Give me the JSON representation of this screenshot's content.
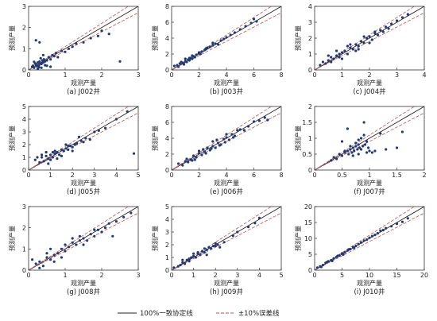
{
  "legend": {
    "one_to_one": "100%一致协定线",
    "error_band": "±10%误差线"
  },
  "colors": {
    "points": "#1f3b73",
    "one_to_one_line": "#222222",
    "error_lines": "#c0504d"
  },
  "chart_data": [
    {
      "type": "scatter",
      "caption": "(a) J002井",
      "xlabel": "观测产量",
      "ylabel": "预测产量",
      "xlim": [
        0,
        3
      ],
      "ylim": [
        0,
        3
      ],
      "xticks": [
        0,
        1,
        2,
        3
      ],
      "yticks": [
        0,
        1,
        2,
        3
      ],
      "x": [
        0.1,
        0.12,
        0.15,
        0.18,
        0.2,
        0.22,
        0.25,
        0.28,
        0.3,
        0.32,
        0.35,
        0.38,
        0.4,
        0.42,
        0.45,
        0.5,
        0.55,
        0.6,
        0.65,
        0.7,
        0.75,
        0.8,
        0.9,
        1.0,
        1.1,
        1.2,
        1.3,
        1.5,
        1.7,
        1.9,
        2.0,
        2.2,
        2.5,
        0.2,
        0.3,
        0.4,
        0.5,
        0.6,
        0.25,
        0.35,
        0.45,
        0.15,
        0.28,
        0.33
      ],
      "y": [
        0.15,
        0.2,
        0.1,
        0.3,
        0.25,
        0.18,
        0.35,
        0.2,
        0.4,
        0.3,
        0.28,
        0.45,
        0.35,
        0.5,
        0.4,
        0.45,
        0.6,
        0.5,
        0.7,
        0.65,
        0.8,
        0.6,
        0.9,
        0.85,
        1.0,
        1.1,
        1.25,
        1.3,
        1.5,
        1.6,
        1.85,
        1.7,
        0.4,
        1.4,
        1.3,
        0.7,
        0.2,
        0.15,
        0.05,
        0.1,
        0.22,
        0.38,
        0.12,
        0.55
      ]
    },
    {
      "type": "scatter",
      "caption": "(b) J003井",
      "xlabel": "观测产量",
      "ylabel": "预测产量",
      "xlim": [
        0,
        8
      ],
      "ylim": [
        0,
        8
      ],
      "xticks": [
        0,
        2,
        4,
        6,
        8
      ],
      "yticks": [
        0,
        2,
        4,
        6,
        8
      ],
      "x": [
        0.2,
        0.4,
        0.5,
        0.6,
        0.8,
        0.9,
        1.0,
        1.1,
        1.2,
        1.3,
        1.4,
        1.5,
        1.6,
        1.7,
        1.8,
        2.0,
        2.1,
        2.2,
        2.4,
        2.5,
        2.6,
        2.8,
        3.0,
        3.2,
        3.4,
        3.6,
        3.8,
        4.0,
        4.3,
        4.6,
        5.0,
        5.4,
        5.8,
        6.0,
        6.2,
        1.0,
        1.5,
        2.0,
        2.5,
        3.0,
        0.7,
        1.3
      ],
      "y": [
        0.5,
        0.6,
        0.4,
        0.8,
        0.9,
        0.7,
        1.1,
        1.0,
        1.3,
        1.2,
        1.5,
        1.4,
        1.7,
        1.6,
        1.9,
        2.1,
        2.0,
        2.3,
        2.5,
        2.6,
        2.8,
        2.9,
        3.1,
        3.3,
        3.2,
        3.7,
        3.9,
        4.1,
        4.4,
        4.7,
        5.1,
        5.5,
        5.9,
        6.4,
        6.1,
        1.4,
        1.8,
        2.2,
        2.7,
        3.4,
        1.0,
        1.5
      ]
    },
    {
      "type": "scatter",
      "caption": "(c) J004井",
      "xlabel": "观测产量",
      "ylabel": "预测产量",
      "xlim": [
        0,
        4
      ],
      "ylim": [
        0,
        4
      ],
      "xticks": [
        0,
        1,
        2,
        3,
        4
      ],
      "yticks": [
        0,
        1,
        2,
        3,
        4
      ],
      "x": [
        0.2,
        0.3,
        0.4,
        0.5,
        0.6,
        0.7,
        0.8,
        0.9,
        1.0,
        1.1,
        1.2,
        1.3,
        1.4,
        1.5,
        1.6,
        1.7,
        1.8,
        1.9,
        2.0,
        2.1,
        2.2,
        2.3,
        2.4,
        2.5,
        2.6,
        2.8,
        3.0,
        3.2,
        3.4,
        0.5,
        0.8,
        1.0,
        1.2,
        1.5,
        1.8,
        2.0,
        0.6,
        0.9,
        1.3,
        1.6,
        2.2,
        2.7
      ],
      "y": [
        0.3,
        0.5,
        0.4,
        0.6,
        0.8,
        0.7,
        0.9,
        1.0,
        1.1,
        1.2,
        1.0,
        1.4,
        1.3,
        1.6,
        1.5,
        1.8,
        1.7,
        2.0,
        2.1,
        1.9,
        2.3,
        2.2,
        2.5,
        2.4,
        2.7,
        2.9,
        3.1,
        3.3,
        3.5,
        0.9,
        1.2,
        0.7,
        1.5,
        1.2,
        2.1,
        1.7,
        0.5,
        0.8,
        1.6,
        1.3,
        2.4,
        2.6
      ]
    },
    {
      "type": "scatter",
      "caption": "(d) J005井",
      "xlabel": "观测产量",
      "ylabel": "预测产量",
      "xlim": [
        0,
        5
      ],
      "ylim": [
        0,
        5
      ],
      "xticks": [
        0,
        1,
        2,
        3,
        4,
        5
      ],
      "yticks": [
        0,
        1,
        2,
        3,
        4,
        5
      ],
      "x": [
        0.3,
        0.5,
        0.6,
        0.7,
        0.8,
        0.9,
        1.0,
        1.1,
        1.2,
        1.3,
        1.4,
        1.5,
        1.6,
        1.7,
        1.8,
        1.9,
        2.0,
        2.1,
        2.2,
        2.4,
        2.6,
        2.8,
        3.0,
        3.2,
        3.5,
        4.0,
        4.5,
        4.8,
        0.8,
        1.0,
        1.2,
        1.5,
        1.8,
        2.0,
        2.5,
        0.6,
        0.9,
        1.3,
        1.7,
        2.3,
        0.4,
        1.1
      ],
      "y": [
        0.8,
        0.6,
        1.0,
        0.7,
        1.1,
        0.9,
        1.2,
        1.0,
        1.3,
        1.4,
        1.2,
        1.6,
        1.5,
        1.7,
        1.6,
        1.9,
        1.8,
        2.0,
        2.1,
        2.3,
        2.5,
        2.4,
        3.0,
        3.1,
        3.3,
        4.0,
        4.6,
        1.3,
        1.4,
        0.8,
        1.5,
        1.1,
        1.9,
        1.5,
        2.2,
        1.2,
        0.5,
        0.9,
        2.0,
        2.6,
        1.0,
        1.4
      ]
    },
    {
      "type": "scatter",
      "caption": "(e) J006井",
      "xlabel": "观测产量",
      "ylabel": "预测产量",
      "xlim": [
        0,
        8
      ],
      "ylim": [
        0,
        8
      ],
      "xticks": [
        0,
        2,
        4,
        6,
        8
      ],
      "yticks": [
        0,
        2,
        4,
        6,
        8
      ],
      "x": [
        0.5,
        0.8,
        1.0,
        1.2,
        1.4,
        1.6,
        1.8,
        2.0,
        2.2,
        2.4,
        2.6,
        2.8,
        3.0,
        3.2,
        3.4,
        3.6,
        3.8,
        4.0,
        4.2,
        4.4,
        4.6,
        4.8,
        5.0,
        5.3,
        5.6,
        6.0,
        6.4,
        6.8,
        7.0,
        1.5,
        2.0,
        2.5,
        3.0,
        3.5,
        4.0,
        4.5,
        1.1,
        1.7,
        2.3,
        2.9,
        3.3,
        3.9
      ],
      "y": [
        0.8,
        0.6,
        1.1,
        1.0,
        1.3,
        1.8,
        1.6,
        2.1,
        1.9,
        2.3,
        2.8,
        2.5,
        3.0,
        2.8,
        3.4,
        3.2,
        3.9,
        4.1,
        3.8,
        4.5,
        4.3,
        5.0,
        5.1,
        5.0,
        5.5,
        6.1,
        6.2,
        6.6,
        6.3,
        1.2,
        2.4,
        2.1,
        3.6,
        3.1,
        4.5,
        4.1,
        1.4,
        1.3,
        2.6,
        2.7,
        3.8,
        3.5
      ]
    },
    {
      "type": "scatter",
      "caption": "(f) J007井",
      "xlabel": "观测产量",
      "ylabel": "预测产量",
      "xlim": [
        0,
        2
      ],
      "ylim": [
        0,
        2
      ],
      "xticks": [
        0,
        0.5,
        1.0,
        1.5,
        2.0
      ],
      "yticks": [
        0,
        0.5,
        1.0,
        1.5,
        2.0
      ],
      "x": [
        0.3,
        0.35,
        0.4,
        0.45,
        0.5,
        0.55,
        0.6,
        0.62,
        0.65,
        0.68,
        0.7,
        0.72,
        0.75,
        0.78,
        0.8,
        0.82,
        0.85,
        0.88,
        0.9,
        0.92,
        0.95,
        0.98,
        1.0,
        1.05,
        1.1,
        1.2,
        1.3,
        1.5,
        1.6,
        0.5,
        0.6,
        0.7,
        0.8,
        0.85,
        0.9,
        0.75,
        0.65,
        0.55,
        0.95,
        0.8
      ],
      "y": [
        0.3,
        0.4,
        0.35,
        0.5,
        0.45,
        0.55,
        0.6,
        0.5,
        0.65,
        0.55,
        0.7,
        0.6,
        0.75,
        0.65,
        0.8,
        0.7,
        1.0,
        0.75,
        1.5,
        0.8,
        0.9,
        0.7,
        0.6,
        0.55,
        0.6,
        1.15,
        0.65,
        0.7,
        1.2,
        0.9,
        1.3,
        0.45,
        0.5,
        0.65,
        1.1,
        0.85,
        0.75,
        0.6,
        0.55,
        0.95
      ]
    },
    {
      "type": "scatter",
      "caption": "(g) J008井",
      "xlabel": "观测产量",
      "ylabel": "预测产量",
      "xlim": [
        0,
        3
      ],
      "ylim": [
        0,
        3
      ],
      "xticks": [
        0,
        1,
        2,
        3
      ],
      "yticks": [
        0,
        1,
        2,
        3
      ],
      "x": [
        0.1,
        0.2,
        0.3,
        0.4,
        0.5,
        0.6,
        0.7,
        0.8,
        0.9,
        1.0,
        1.1,
        1.2,
        1.3,
        1.4,
        1.5,
        1.6,
        1.7,
        1.8,
        1.9,
        2.0,
        2.1,
        2.2,
        2.4,
        2.6,
        2.8,
        0.3,
        0.5,
        0.7,
        0.9,
        1.2,
        1.5,
        1.8,
        2.3,
        0.6,
        1.0,
        1.4
      ],
      "y": [
        0.5,
        0.3,
        0.4,
        0.2,
        0.6,
        0.5,
        0.7,
        0.8,
        1.0,
        0.9,
        1.1,
        1.3,
        1.2,
        1.4,
        1.5,
        1.4,
        1.7,
        1.6,
        1.9,
        1.8,
        2.0,
        2.2,
        2.3,
        2.5,
        2.7,
        0.1,
        0.8,
        0.4,
        0.6,
        1.5,
        1.2,
        1.9,
        1.6,
        1.0,
        1.2,
        1.6
      ]
    },
    {
      "type": "scatter",
      "caption": "(h) J009井",
      "xlabel": "观测产量",
      "ylabel": "预测产量",
      "xlim": [
        0,
        5
      ],
      "ylim": [
        0,
        5
      ],
      "xticks": [
        0,
        1,
        2,
        3,
        4,
        5
      ],
      "yticks": [
        0,
        1,
        2,
        3,
        4,
        5
      ],
      "x": [
        0.1,
        0.3,
        0.5,
        0.6,
        0.7,
        0.8,
        0.9,
        1.0,
        1.1,
        1.2,
        1.3,
        1.4,
        1.5,
        1.6,
        1.7,
        1.8,
        1.9,
        2.0,
        2.1,
        2.2,
        2.4,
        2.8,
        3.0,
        3.5,
        3.8,
        4.0,
        0.4,
        0.8,
        1.2,
        1.6,
        2.0,
        0.5,
        1.0,
        1.5
      ],
      "y": [
        0.2,
        0.3,
        0.6,
        0.5,
        0.8,
        0.7,
        1.0,
        1.1,
        1.0,
        1.3,
        1.2,
        1.5,
        1.4,
        1.6,
        1.8,
        1.7,
        1.9,
        2.1,
        2.0,
        1.8,
        2.2,
        2.7,
        3.0,
        3.4,
        3.7,
        4.1,
        0.4,
        0.9,
        1.4,
        1.2,
        1.9,
        0.8,
        1.3,
        1.7
      ]
    },
    {
      "type": "scatter",
      "caption": "(i) J010井",
      "xlabel": "观测产量",
      "ylabel": "预测产量",
      "xlim": [
        0,
        20
      ],
      "ylim": [
        0,
        20
      ],
      "xticks": [
        0,
        5,
        10,
        15,
        20
      ],
      "yticks": [
        0,
        5,
        10,
        15,
        20
      ],
      "x": [
        0.5,
        1,
        1.5,
        2,
        2.5,
        3,
        3.5,
        4,
        4.5,
        5,
        5.5,
        6,
        6.5,
        7,
        7.5,
        8,
        8.5,
        9,
        9.5,
        10,
        10.5,
        11,
        11.5,
        12,
        12.5,
        13,
        14,
        15,
        16,
        17,
        1.2,
        2.2,
        3.2,
        4.2,
        5.2,
        6.2,
        7.2
      ],
      "y": [
        0.8,
        1.2,
        1.6,
        2.3,
        2.8,
        3.1,
        3.7,
        4.2,
        4.6,
        5.3,
        5.6,
        6.2,
        6.6,
        7.3,
        7.6,
        8.2,
        8.7,
        9.3,
        9.6,
        10.2,
        10.7,
        11.1,
        11.6,
        12.4,
        12.6,
        13.2,
        13.8,
        14.6,
        15.2,
        16.3,
        1.0,
        2.5,
        2.9,
        4.5,
        4.9,
        6.5,
        7.0
      ]
    }
  ]
}
